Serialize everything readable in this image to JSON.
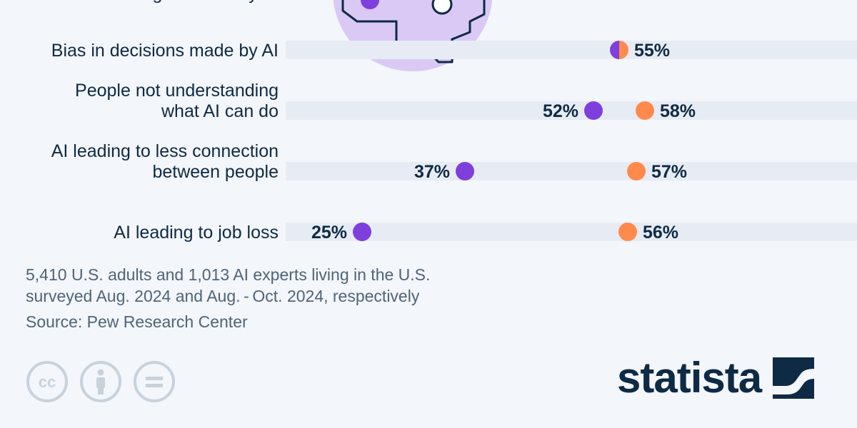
{
  "chart_data": {
    "type": "dot",
    "series": [
      {
        "name": "U.S. adults",
        "color": "#7e3fdc"
      },
      {
        "name": "AI experts",
        "color": "#ff8a4c"
      }
    ],
    "rows": [
      {
        "label": [
          "being misused by AI"
        ],
        "partial": true
      },
      {
        "label": [
          "Bias in decisions made by AI"
        ],
        "values": [
          55,
          55
        ],
        "value_labels": [
          "",
          "55%"
        ]
      },
      {
        "label": [
          "People not understanding",
          "what AI can do"
        ],
        "values": [
          52,
          58
        ],
        "value_labels": [
          "52%",
          "58%"
        ]
      },
      {
        "label": [
          "AI leading to less connection",
          "between people"
        ],
        "values": [
          37,
          57
        ],
        "value_labels": [
          "37%",
          "57%"
        ]
      },
      {
        "label": [
          "AI leading to job loss"
        ],
        "values": [
          25,
          56
        ],
        "value_labels": [
          "25%",
          "56%"
        ]
      }
    ]
  },
  "notes": {
    "line1": "5,410 U.S. adults and 1,013 AI experts living in the U.S.",
    "line2": "surveyed Aug. 2024 and Aug. - Oct. 2024, respectively"
  },
  "source": "Source: Pew Research Center",
  "brand": {
    "logo_text": "statista"
  },
  "license_icons": [
    "cc-icon",
    "attribution-icon",
    "no-derivatives-icon"
  ],
  "colors": {
    "bg": "#f3f6fa",
    "band": "#e7ecf4",
    "text": "#0f2a44",
    "muted": "#4f6478",
    "illustration": "#dac9f5"
  }
}
